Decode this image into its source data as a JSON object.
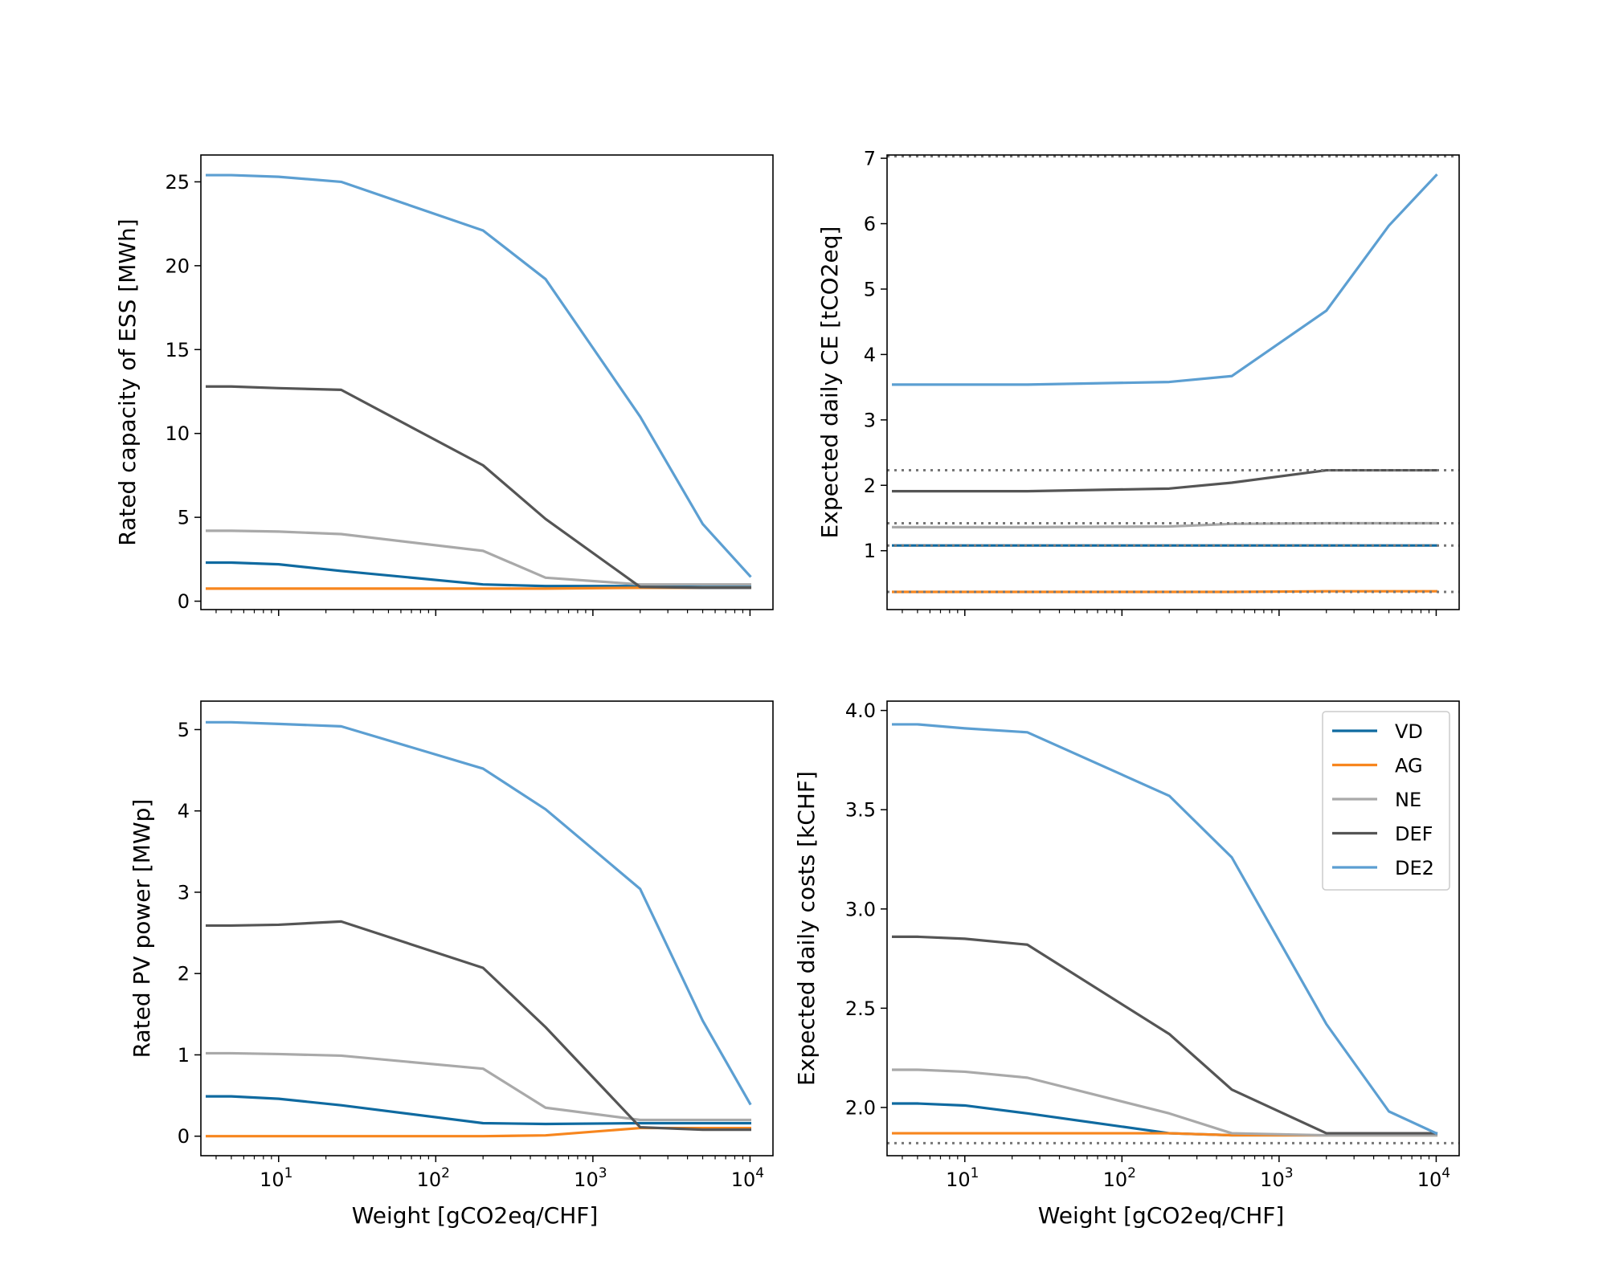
{
  "figure": {
    "series_meta": [
      {
        "name": "VD",
        "color": "#0f6aa0"
      },
      {
        "name": "AG",
        "color": "#f7861e"
      },
      {
        "name": "NE",
        "color": "#a9a9a9"
      },
      {
        "name": "DEF",
        "color": "#555555"
      },
      {
        "name": "DE2",
        "color": "#5c9fd2"
      }
    ],
    "legend": {
      "entries": [
        "VD",
        "AG",
        "NE",
        "DEF",
        "DE2"
      ],
      "placement": "top-right of bottom-right panel"
    }
  },
  "chart_data": [
    {
      "id": "ess",
      "type": "line",
      "xscale": "log",
      "xlim": [
        3.2,
        14000
      ],
      "ylim": [
        -0.5,
        26.6
      ],
      "x": [
        3.5,
        5,
        10,
        25,
        200,
        500,
        2000,
        5000,
        10000
      ],
      "xticks": [
        10,
        100,
        1000,
        10000
      ],
      "xtick_labels": [
        {
          "base": "10",
          "exp": "1"
        },
        {
          "base": "10",
          "exp": "2"
        },
        {
          "base": "10",
          "exp": "3"
        },
        {
          "base": "10",
          "exp": "4"
        }
      ],
      "show_xtick_labels": false,
      "yticks": [
        0,
        5,
        10,
        15,
        20,
        25
      ],
      "ytick_labels": [
        "0",
        "5",
        "10",
        "15",
        "20",
        "25"
      ],
      "xlabel": "",
      "ylabel": "Rated capacity of ESS [MWh]",
      "hlines": [],
      "series": [
        {
          "name": "VD",
          "values": [
            2.3,
            2.3,
            2.2,
            1.8,
            1.0,
            0.9,
            0.9,
            0.85,
            0.85
          ]
        },
        {
          "name": "AG",
          "values": [
            0.75,
            0.75,
            0.75,
            0.75,
            0.75,
            0.75,
            0.8,
            0.8,
            0.8
          ]
        },
        {
          "name": "NE",
          "values": [
            4.2,
            4.2,
            4.15,
            4.0,
            3.0,
            1.4,
            1.0,
            1.0,
            1.0
          ]
        },
        {
          "name": "DEF",
          "values": [
            12.8,
            12.8,
            12.7,
            12.6,
            8.1,
            4.9,
            0.85,
            0.8,
            0.8
          ]
        },
        {
          "name": "DE2",
          "values": [
            25.4,
            25.4,
            25.3,
            25.0,
            22.1,
            19.2,
            11.0,
            4.6,
            1.5
          ]
        }
      ]
    },
    {
      "id": "ce",
      "type": "line",
      "xscale": "log",
      "xlim": [
        3.2,
        14000
      ],
      "ylim": [
        0.1,
        7.05
      ],
      "x": [
        3.5,
        5,
        10,
        25,
        200,
        500,
        2000,
        5000,
        10000
      ],
      "xticks": [
        10,
        100,
        1000,
        10000
      ],
      "xtick_labels": [
        {
          "base": "10",
          "exp": "1"
        },
        {
          "base": "10",
          "exp": "2"
        },
        {
          "base": "10",
          "exp": "3"
        },
        {
          "base": "10",
          "exp": "4"
        }
      ],
      "show_xtick_labels": false,
      "yticks": [
        1,
        2,
        3,
        4,
        5,
        6,
        7
      ],
      "ytick_labels": [
        "1",
        "2",
        "3",
        "4",
        "5",
        "6",
        "7"
      ],
      "xlabel": "",
      "ylabel": "Expected daily CE [tCO2eq]",
      "hlines": [
        0.37,
        1.08,
        1.42,
        2.23,
        7.03
      ],
      "series": [
        {
          "name": "VD",
          "values": [
            1.08,
            1.08,
            1.08,
            1.08,
            1.08,
            1.08,
            1.08,
            1.08,
            1.08
          ]
        },
        {
          "name": "AG",
          "values": [
            0.37,
            0.37,
            0.37,
            0.37,
            0.37,
            0.37,
            0.38,
            0.38,
            0.38
          ]
        },
        {
          "name": "NE",
          "values": [
            1.36,
            1.36,
            1.36,
            1.36,
            1.37,
            1.41,
            1.42,
            1.42,
            1.42
          ]
        },
        {
          "name": "DEF",
          "values": [
            1.91,
            1.91,
            1.91,
            1.91,
            1.95,
            2.04,
            2.23,
            2.23,
            2.23
          ]
        },
        {
          "name": "DE2",
          "values": [
            3.54,
            3.54,
            3.54,
            3.54,
            3.58,
            3.67,
            4.67,
            5.97,
            6.74
          ]
        }
      ]
    },
    {
      "id": "pv",
      "type": "line",
      "xscale": "log",
      "xlim": [
        3.2,
        14000
      ],
      "ylim": [
        -0.24,
        5.35
      ],
      "x": [
        3.5,
        5,
        10,
        25,
        200,
        500,
        2000,
        5000,
        10000
      ],
      "xticks": [
        10,
        100,
        1000,
        10000
      ],
      "xtick_labels": [
        {
          "base": "10",
          "exp": "1"
        },
        {
          "base": "10",
          "exp": "2"
        },
        {
          "base": "10",
          "exp": "3"
        },
        {
          "base": "10",
          "exp": "4"
        }
      ],
      "show_xtick_labels": true,
      "yticks": [
        0,
        1,
        2,
        3,
        4,
        5
      ],
      "ytick_labels": [
        "0",
        "1",
        "2",
        "3",
        "4",
        "5"
      ],
      "xlabel": "Weight [gCO2eq/CHF]",
      "ylabel": "Rated PV power [MWp]",
      "hlines": [],
      "series": [
        {
          "name": "VD",
          "values": [
            0.49,
            0.49,
            0.46,
            0.38,
            0.16,
            0.15,
            0.16,
            0.16,
            0.16
          ]
        },
        {
          "name": "AG",
          "values": [
            0.0,
            0.0,
            0.0,
            0.0,
            0.0,
            0.01,
            0.1,
            0.1,
            0.1
          ]
        },
        {
          "name": "NE",
          "values": [
            1.02,
            1.02,
            1.01,
            0.99,
            0.83,
            0.35,
            0.2,
            0.2,
            0.2
          ]
        },
        {
          "name": "DEF",
          "values": [
            2.59,
            2.59,
            2.6,
            2.64,
            2.07,
            1.34,
            0.11,
            0.08,
            0.08
          ]
        },
        {
          "name": "DE2",
          "values": [
            5.09,
            5.09,
            5.07,
            5.04,
            4.52,
            4.02,
            3.04,
            1.42,
            0.4
          ]
        }
      ]
    },
    {
      "id": "costs",
      "type": "line",
      "xscale": "log",
      "xlim": [
        3.2,
        14000
      ],
      "ylim": [
        1.757,
        4.047
      ],
      "x": [
        3.5,
        5,
        10,
        25,
        200,
        500,
        2000,
        5000,
        10000
      ],
      "xticks": [
        10,
        100,
        1000,
        10000
      ],
      "xtick_labels": [
        {
          "base": "10",
          "exp": "1"
        },
        {
          "base": "10",
          "exp": "2"
        },
        {
          "base": "10",
          "exp": "3"
        },
        {
          "base": "10",
          "exp": "4"
        }
      ],
      "show_xtick_labels": true,
      "yticks": [
        2.0,
        2.5,
        3.0,
        3.5,
        4.0
      ],
      "ytick_labels": [
        "2.0",
        "2.5",
        "3.0",
        "3.5",
        "4.0"
      ],
      "xlabel": "Weight [gCO2eq/CHF]",
      "ylabel": "Expected daily costs [kCHF]",
      "hlines": [
        1.82
      ],
      "series": [
        {
          "name": "VD",
          "values": [
            2.02,
            2.02,
            2.01,
            1.97,
            1.87,
            1.86,
            1.86,
            1.86,
            1.86
          ]
        },
        {
          "name": "AG",
          "values": [
            1.87,
            1.87,
            1.87,
            1.87,
            1.87,
            1.86,
            1.86,
            1.86,
            1.86
          ]
        },
        {
          "name": "NE",
          "values": [
            2.19,
            2.19,
            2.18,
            2.15,
            1.97,
            1.87,
            1.86,
            1.86,
            1.86
          ]
        },
        {
          "name": "DEF",
          "values": [
            2.86,
            2.86,
            2.85,
            2.82,
            2.37,
            2.09,
            1.87,
            1.87,
            1.87
          ]
        },
        {
          "name": "DE2",
          "values": [
            3.93,
            3.93,
            3.91,
            3.89,
            3.57,
            3.26,
            2.42,
            1.98,
            1.87
          ]
        }
      ]
    }
  ]
}
